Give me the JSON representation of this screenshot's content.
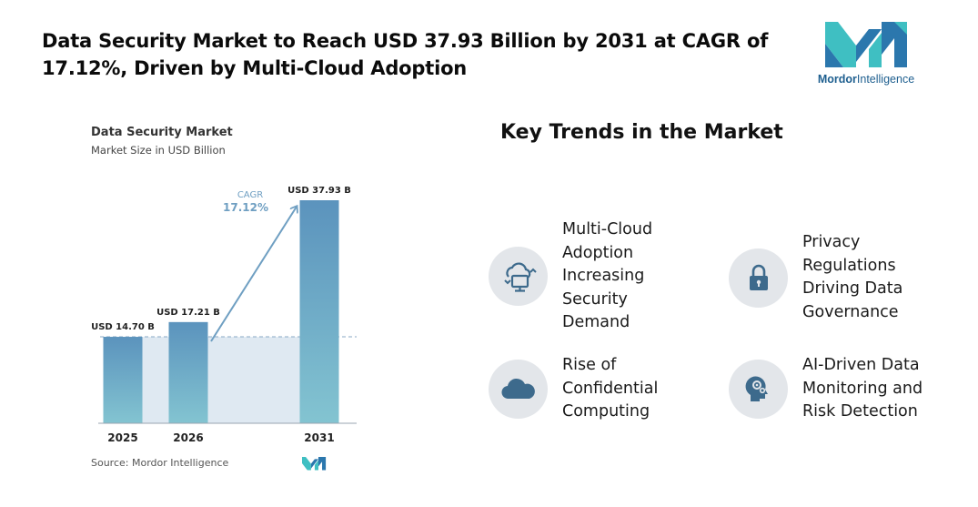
{
  "headline": {
    "line1": "Data Security Market to Reach USD 37.93 Billion by 2031 at CAGR of",
    "line2": "17.12%, Driven by Multi-Cloud Adoption"
  },
  "brand": {
    "name_part1": "Mordor",
    "name_part2": "Intelligence",
    "colors": {
      "teal": "#3fbfc2",
      "blue": "#2b77ad"
    }
  },
  "chart_data": {
    "type": "bar",
    "title": "Data Security Market",
    "subtitle": "Market Size in USD Billion",
    "categories": [
      "2025",
      "2026",
      "2031"
    ],
    "values": [
      14.7,
      17.21,
      37.93
    ],
    "data_labels": [
      "USD 14.70 B",
      "USD 17.21 B",
      "USD 37.93 B"
    ],
    "ylim": [
      0,
      40
    ],
    "cagr_label": "CAGR",
    "cagr_value": "17.12%",
    "source": "Source: Mordor Intelligence",
    "colors": {
      "bar_top": "#5b93bd",
      "bar_bottom": "#83c4d1",
      "band": "#dfe9f2",
      "arrow": "#6f9fc2"
    }
  },
  "trends": {
    "title": "Key Trends in the Market",
    "items": [
      {
        "icon": "multi-cloud-icon",
        "lines": [
          "Multi-Cloud",
          "Adoption",
          "Increasing",
          "Security",
          "Demand"
        ]
      },
      {
        "icon": "padlock-icon",
        "lines": [
          "Privacy",
          "Regulations",
          "Driving Data",
          "Governance"
        ]
      },
      {
        "icon": "cloud-icon",
        "lines": [
          "Rise of",
          "Confidential",
          "Computing"
        ]
      },
      {
        "icon": "ai-head-icon",
        "lines": [
          "AI-Driven Data",
          "Monitoring and",
          "Risk Detection"
        ]
      }
    ]
  }
}
